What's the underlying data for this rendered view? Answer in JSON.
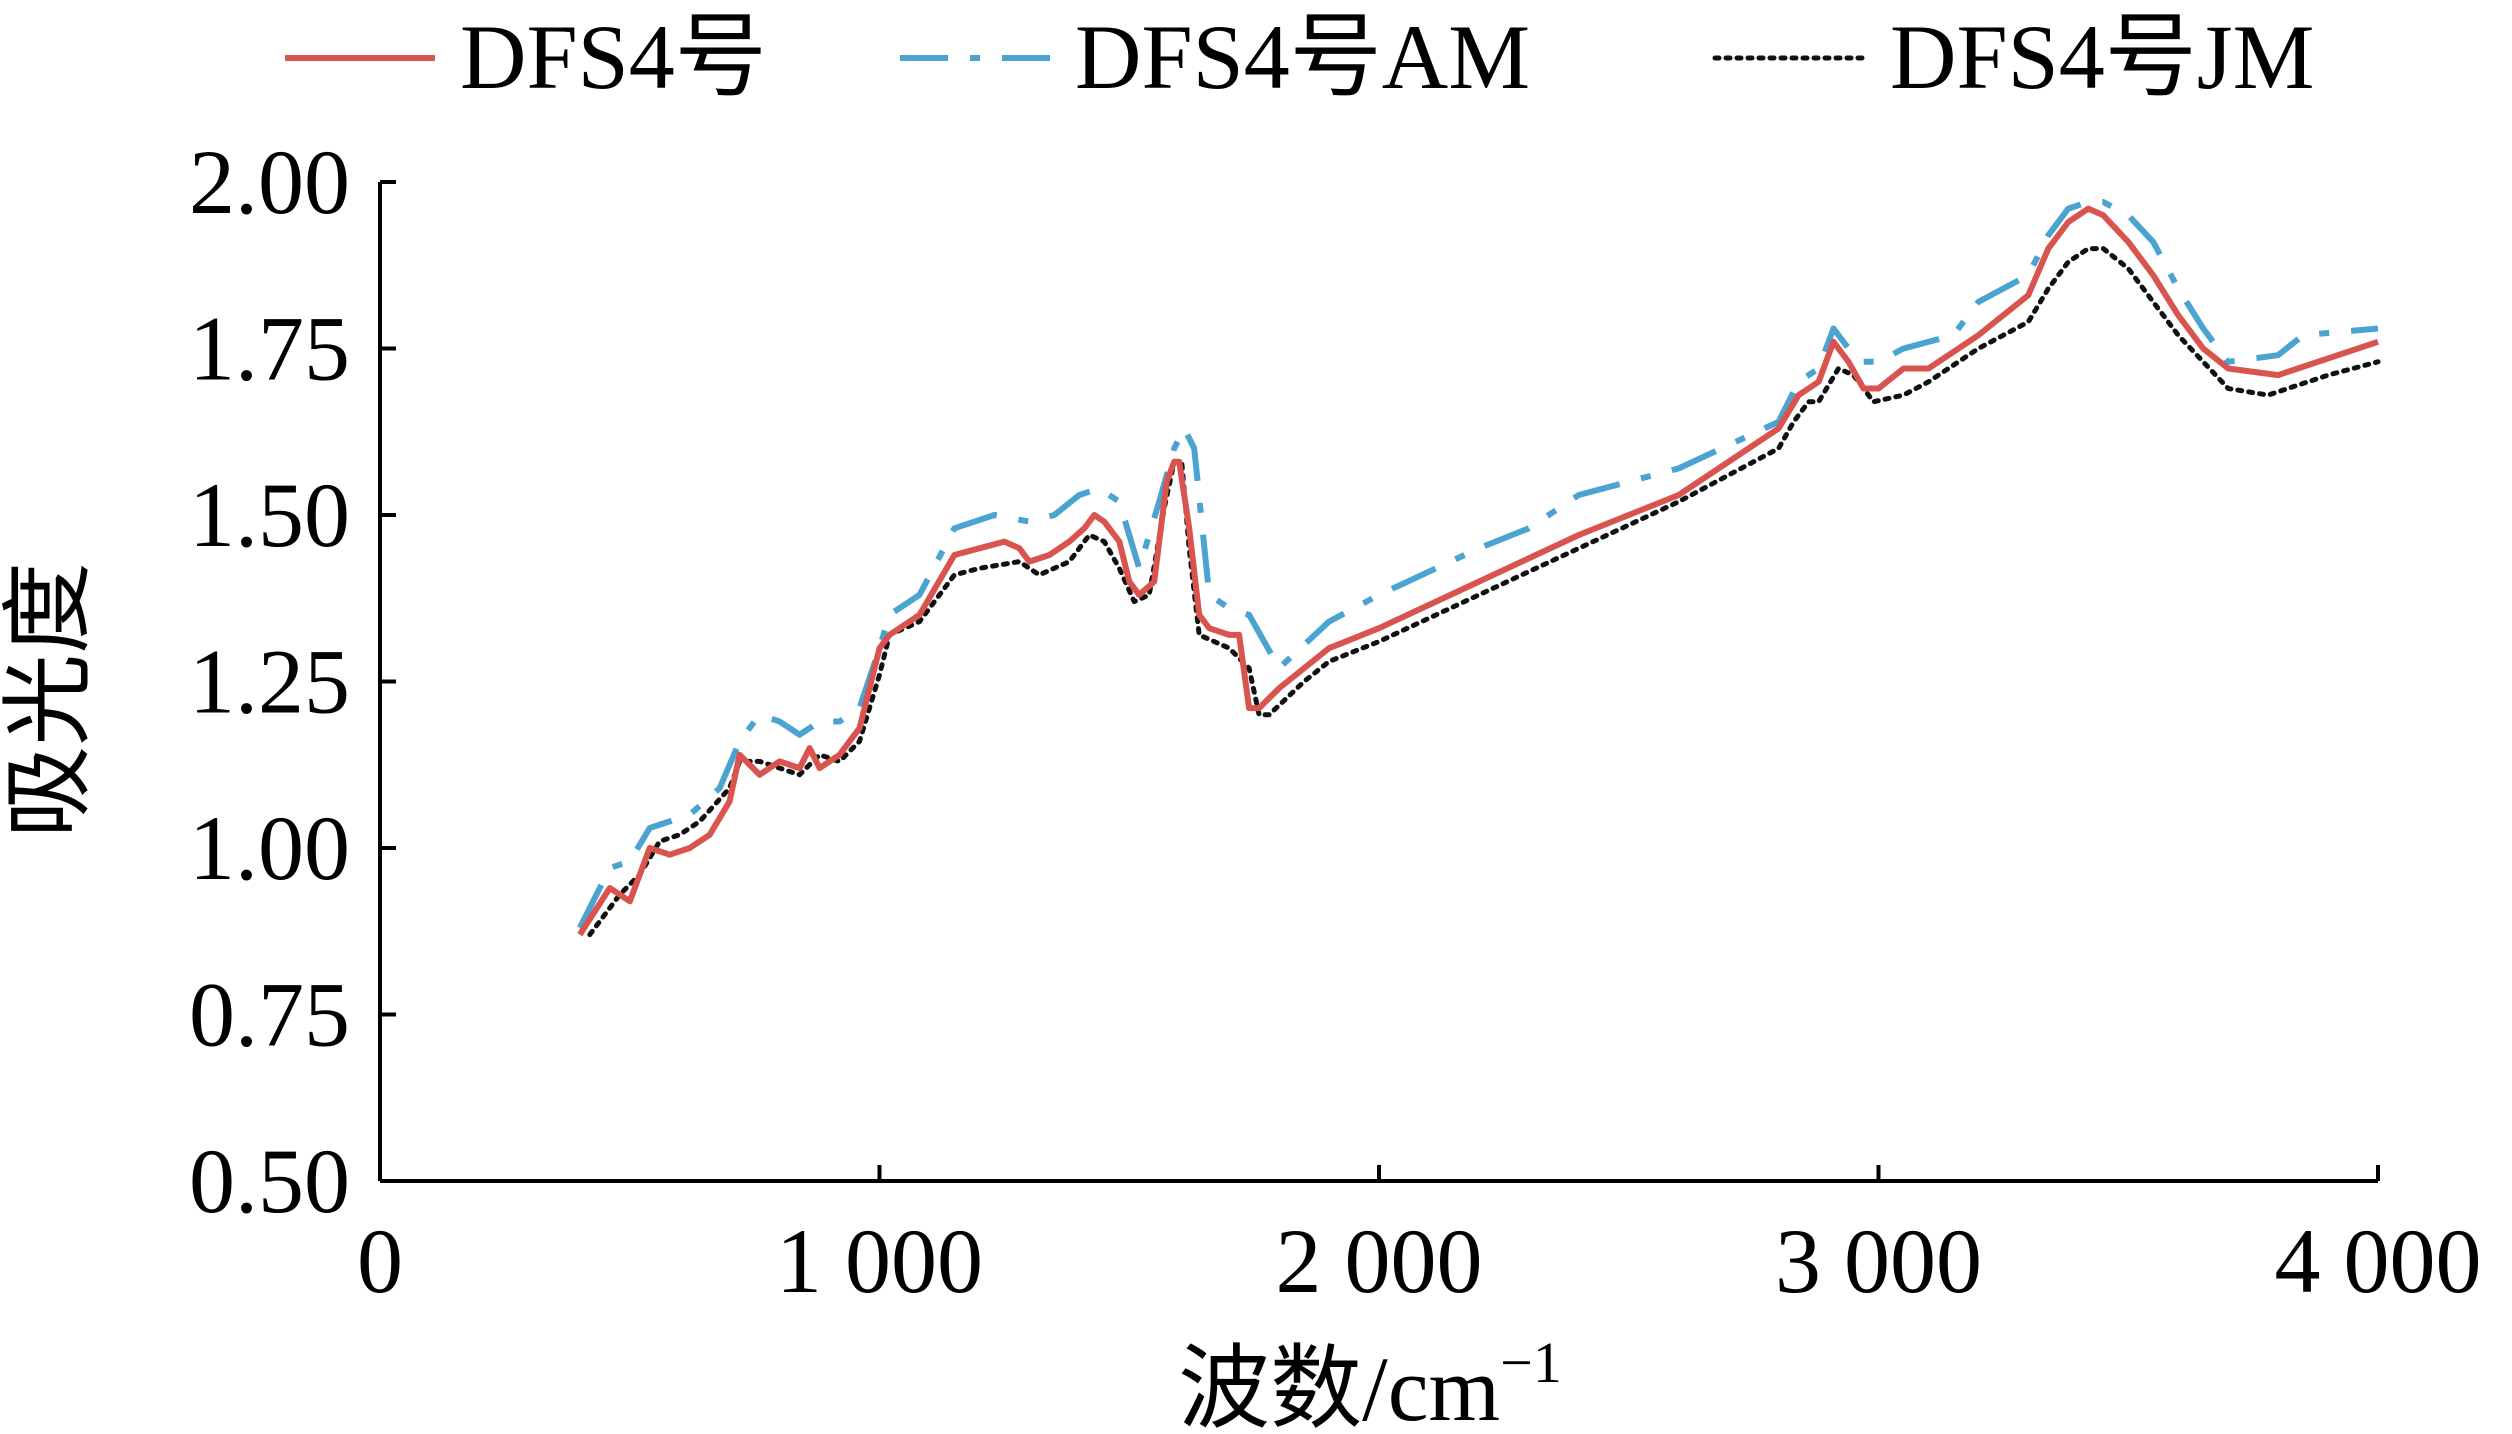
{
  "chart_data": {
    "type": "line",
    "title": "",
    "xlabel": "波数/cm",
    "xlabel_sup": "−1",
    "ylabel": "吸光度",
    "xlim": [
      0,
      4000
    ],
    "ylim": [
      0.5,
      2.0
    ],
    "x_ticks": [
      0,
      1000,
      2000,
      3000,
      4000
    ],
    "x_tick_labels": [
      "0",
      "1 000",
      "2 000",
      "3 000",
      "4 000"
    ],
    "y_ticks": [
      0.5,
      0.75,
      1.0,
      1.25,
      1.5,
      1.75,
      2.0
    ],
    "y_tick_labels": [
      "0.50",
      "0.75",
      "1.00",
      "1.25",
      "1.50",
      "1.75",
      "2.00"
    ],
    "grid": false,
    "legend_position": "top",
    "series": [
      {
        "name": "DFS4号",
        "color": "#d9534f",
        "style": "solid",
        "points": [
          [
            400,
            0.87
          ],
          [
            460,
            0.94
          ],
          [
            500,
            0.92
          ],
          [
            540,
            1.0
          ],
          [
            580,
            0.99
          ],
          [
            620,
            1.0
          ],
          [
            660,
            1.02
          ],
          [
            700,
            1.07
          ],
          [
            720,
            1.14
          ],
          [
            760,
            1.11
          ],
          [
            800,
            1.13
          ],
          [
            840,
            1.12
          ],
          [
            860,
            1.15
          ],
          [
            880,
            1.12
          ],
          [
            920,
            1.14
          ],
          [
            960,
            1.18
          ],
          [
            1000,
            1.3
          ],
          [
            1020,
            1.32
          ],
          [
            1080,
            1.35
          ],
          [
            1150,
            1.44
          ],
          [
            1200,
            1.45
          ],
          [
            1250,
            1.46
          ],
          [
            1280,
            1.45
          ],
          [
            1300,
            1.43
          ],
          [
            1340,
            1.44
          ],
          [
            1380,
            1.46
          ],
          [
            1410,
            1.48
          ],
          [
            1430,
            1.5
          ],
          [
            1450,
            1.49
          ],
          [
            1480,
            1.46
          ],
          [
            1500,
            1.4
          ],
          [
            1520,
            1.38
          ],
          [
            1550,
            1.4
          ],
          [
            1575,
            1.55
          ],
          [
            1590,
            1.58
          ],
          [
            1600,
            1.58
          ],
          [
            1620,
            1.48
          ],
          [
            1640,
            1.35
          ],
          [
            1660,
            1.33
          ],
          [
            1700,
            1.32
          ],
          [
            1720,
            1.32
          ],
          [
            1740,
            1.21
          ],
          [
            1760,
            1.21
          ],
          [
            1800,
            1.24
          ],
          [
            1850,
            1.27
          ],
          [
            1900,
            1.3
          ],
          [
            2000,
            1.33
          ],
          [
            2200,
            1.4
          ],
          [
            2400,
            1.47
          ],
          [
            2600,
            1.53
          ],
          [
            2800,
            1.63
          ],
          [
            2840,
            1.68
          ],
          [
            2880,
            1.7
          ],
          [
            2910,
            1.76
          ],
          [
            2940,
            1.73
          ],
          [
            2970,
            1.69
          ],
          [
            3000,
            1.69
          ],
          [
            3050,
            1.72
          ],
          [
            3100,
            1.72
          ],
          [
            3200,
            1.77
          ],
          [
            3300,
            1.83
          ],
          [
            3340,
            1.9
          ],
          [
            3380,
            1.94
          ],
          [
            3420,
            1.96
          ],
          [
            3450,
            1.95
          ],
          [
            3500,
            1.91
          ],
          [
            3550,
            1.86
          ],
          [
            3600,
            1.8
          ],
          [
            3650,
            1.75
          ],
          [
            3700,
            1.72
          ],
          [
            3800,
            1.71
          ],
          [
            4000,
            1.76
          ]
        ]
      },
      {
        "name": "DFS4号AM",
        "color": "#4aa3d0",
        "style": "dashdot",
        "points": [
          [
            400,
            0.88
          ],
          [
            460,
            0.97
          ],
          [
            500,
            0.98
          ],
          [
            540,
            1.03
          ],
          [
            580,
            1.04
          ],
          [
            620,
            1.05
          ],
          [
            680,
            1.09
          ],
          [
            720,
            1.16
          ],
          [
            760,
            1.2
          ],
          [
            800,
            1.19
          ],
          [
            840,
            1.17
          ],
          [
            880,
            1.19
          ],
          [
            920,
            1.19
          ],
          [
            960,
            1.21
          ],
          [
            1000,
            1.3
          ],
          [
            1020,
            1.35
          ],
          [
            1080,
            1.38
          ],
          [
            1150,
            1.48
          ],
          [
            1230,
            1.5
          ],
          [
            1300,
            1.49
          ],
          [
            1350,
            1.5
          ],
          [
            1400,
            1.53
          ],
          [
            1440,
            1.54
          ],
          [
            1480,
            1.52
          ],
          [
            1520,
            1.42
          ],
          [
            1560,
            1.52
          ],
          [
            1590,
            1.6
          ],
          [
            1610,
            1.63
          ],
          [
            1630,
            1.6
          ],
          [
            1660,
            1.38
          ],
          [
            1700,
            1.36
          ],
          [
            1740,
            1.35
          ],
          [
            1800,
            1.27
          ],
          [
            1900,
            1.34
          ],
          [
            2000,
            1.38
          ],
          [
            2200,
            1.45
          ],
          [
            2300,
            1.48
          ],
          [
            2400,
            1.53
          ],
          [
            2600,
            1.57
          ],
          [
            2800,
            1.64
          ],
          [
            2840,
            1.7
          ],
          [
            2880,
            1.72
          ],
          [
            2910,
            1.78
          ],
          [
            2940,
            1.75
          ],
          [
            2970,
            1.73
          ],
          [
            3000,
            1.73
          ],
          [
            3050,
            1.75
          ],
          [
            3150,
            1.77
          ],
          [
            3200,
            1.82
          ],
          [
            3300,
            1.86
          ],
          [
            3340,
            1.92
          ],
          [
            3380,
            1.96
          ],
          [
            3420,
            1.97
          ],
          [
            3450,
            1.97
          ],
          [
            3500,
            1.95
          ],
          [
            3550,
            1.91
          ],
          [
            3600,
            1.84
          ],
          [
            3650,
            1.78
          ],
          [
            3700,
            1.73
          ],
          [
            3800,
            1.74
          ],
          [
            3850,
            1.77
          ],
          [
            4000,
            1.78
          ]
        ]
      },
      {
        "name": "DFS4号JM",
        "color": "#111111",
        "style": "dotted",
        "points": [
          [
            420,
            0.87
          ],
          [
            480,
            0.93
          ],
          [
            520,
            0.96
          ],
          [
            560,
            1.01
          ],
          [
            600,
            1.02
          ],
          [
            640,
            1.04
          ],
          [
            700,
            1.09
          ],
          [
            720,
            1.13
          ],
          [
            760,
            1.13
          ],
          [
            800,
            1.12
          ],
          [
            840,
            1.11
          ],
          [
            880,
            1.14
          ],
          [
            920,
            1.13
          ],
          [
            960,
            1.16
          ],
          [
            1000,
            1.26
          ],
          [
            1020,
            1.32
          ],
          [
            1080,
            1.34
          ],
          [
            1150,
            1.41
          ],
          [
            1200,
            1.42
          ],
          [
            1280,
            1.43
          ],
          [
            1320,
            1.41
          ],
          [
            1380,
            1.43
          ],
          [
            1420,
            1.47
          ],
          [
            1450,
            1.46
          ],
          [
            1480,
            1.42
          ],
          [
            1510,
            1.37
          ],
          [
            1540,
            1.38
          ],
          [
            1570,
            1.51
          ],
          [
            1590,
            1.58
          ],
          [
            1605,
            1.58
          ],
          [
            1620,
            1.45
          ],
          [
            1640,
            1.32
          ],
          [
            1700,
            1.3
          ],
          [
            1740,
            1.27
          ],
          [
            1760,
            1.2
          ],
          [
            1780,
            1.2
          ],
          [
            1850,
            1.25
          ],
          [
            1900,
            1.28
          ],
          [
            2000,
            1.31
          ],
          [
            2200,
            1.38
          ],
          [
            2400,
            1.45
          ],
          [
            2600,
            1.52
          ],
          [
            2800,
            1.6
          ],
          [
            2830,
            1.64
          ],
          [
            2860,
            1.67
          ],
          [
            2880,
            1.67
          ],
          [
            2920,
            1.72
          ],
          [
            2950,
            1.71
          ],
          [
            2990,
            1.67
          ],
          [
            3050,
            1.68
          ],
          [
            3100,
            1.7
          ],
          [
            3200,
            1.75
          ],
          [
            3300,
            1.79
          ],
          [
            3340,
            1.84
          ],
          [
            3380,
            1.88
          ],
          [
            3420,
            1.9
          ],
          [
            3450,
            1.9
          ],
          [
            3500,
            1.87
          ],
          [
            3550,
            1.82
          ],
          [
            3600,
            1.77
          ],
          [
            3650,
            1.73
          ],
          [
            3700,
            1.69
          ],
          [
            3780,
            1.68
          ],
          [
            3900,
            1.71
          ],
          [
            4000,
            1.73
          ]
        ]
      }
    ]
  }
}
